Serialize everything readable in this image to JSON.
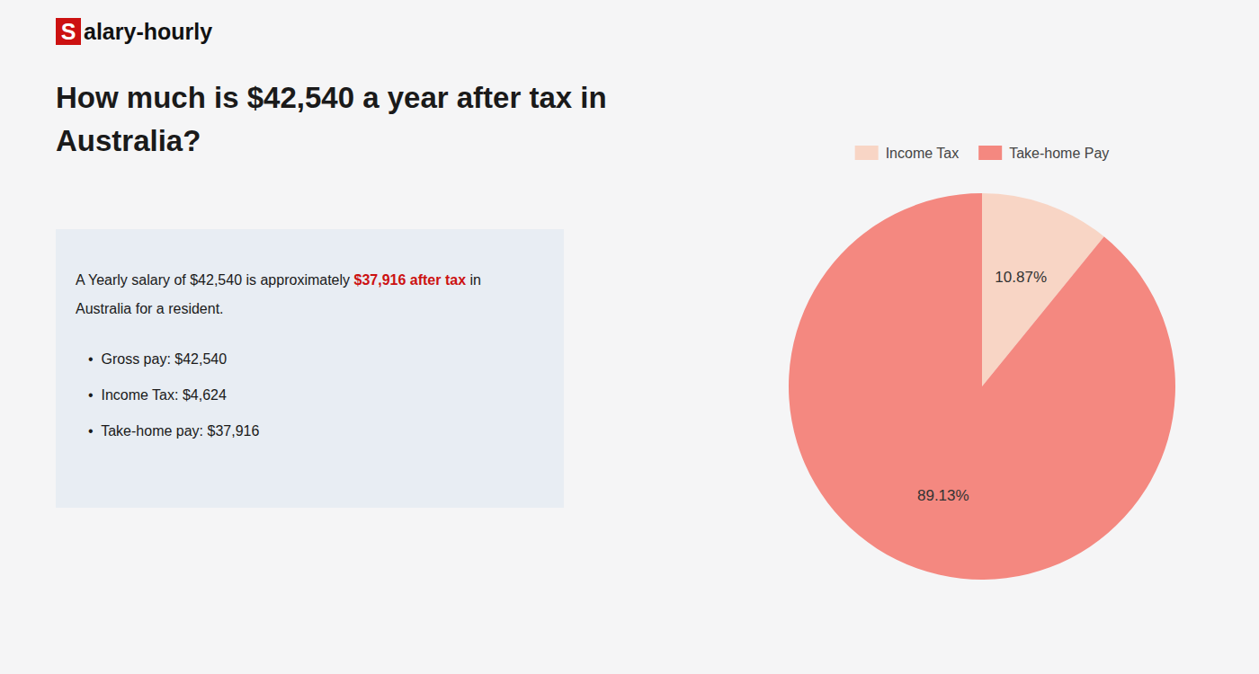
{
  "chart_data": {
    "type": "pie",
    "title": "How much is $42,540 a year after tax in\nAustralia?",
    "categories": [
      "Income Tax",
      "Take-home Pay"
    ],
    "values": [
      10.87,
      89.13
    ],
    "value_labels": [
      "10.87%",
      "89.13%"
    ],
    "colors": [
      "#f8d5c5",
      "#f48880"
    ],
    "data_labels": true,
    "legend": "top",
    "annotations": [
      {
        "text": "S",
        "color": "#cc1111"
      },
      {
        "text": "alary-hourly"
      },
      {
        "text": "A Yearly salary of $42,540 is approximately "
      },
      {
        "text": "$37,916 after tax",
        "color": "#cc1111"
      },
      {
        "text": " in"
      },
      {
        "text": "Australia for a resident."
      },
      {
        "text": "•  Gross pay: $42,540"
      },
      {
        "text": "•  Income Tax: $4,624"
      },
      {
        "text": "•  Take-home pay: $37,916"
      }
    ]
  }
}
